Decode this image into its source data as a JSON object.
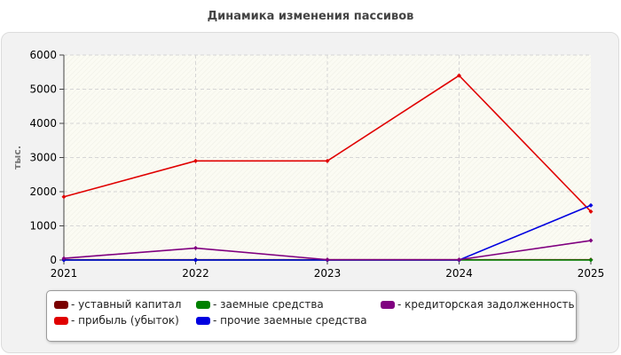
{
  "chart_data": {
    "type": "line",
    "title": "Динамика изменения пассивов",
    "ylabel": "тыс.",
    "x": [
      "2021",
      "2022",
      "2023",
      "2024",
      "2025"
    ],
    "ylim": [
      0,
      6000
    ],
    "yticks": [
      "0",
      "1000",
      "2000",
      "3000",
      "4000",
      "5000",
      "6000"
    ],
    "grid": true,
    "legend_position": "bottom",
    "series": [
      {
        "name": "уставный капитал",
        "color": "#7a0000",
        "values": [
          10,
          10,
          10,
          10,
          10
        ]
      },
      {
        "name": "прибыль (убыток)",
        "color": "#e00000",
        "values": [
          1850,
          2900,
          2900,
          5400,
          1420
        ]
      },
      {
        "name": "заемные средства",
        "color": "#008000",
        "values": [
          0,
          0,
          0,
          0,
          0
        ]
      },
      {
        "name": "прочие заемные средства",
        "color": "#0000e0",
        "values": [
          0,
          0,
          0,
          0,
          1600
        ]
      },
      {
        "name": "кредиторская задолженность",
        "color": "#800080",
        "values": [
          50,
          350,
          10,
          10,
          570
        ]
      }
    ]
  }
}
